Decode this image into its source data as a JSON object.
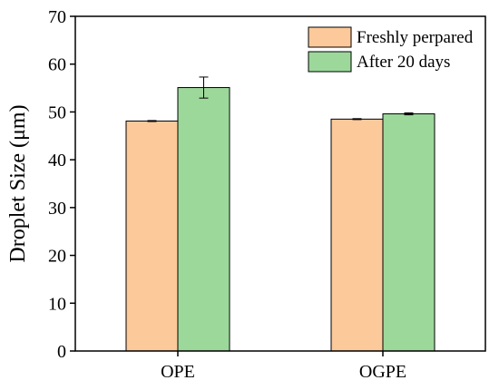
{
  "chart_data": {
    "type": "bar",
    "title": "",
    "xlabel": "",
    "ylabel": "Droplet Size (μm)",
    "categories": [
      "OPE",
      "OGPE"
    ],
    "ylim": [
      0,
      70
    ],
    "yticks": [
      0,
      10,
      20,
      30,
      40,
      50,
      60,
      70
    ],
    "grid": false,
    "legend_position": "top-right",
    "series": [
      {
        "name": "Freshly perpared",
        "color": "#fbc99a",
        "values": [
          48.1,
          48.5
        ],
        "errors": [
          0.1,
          0.1
        ]
      },
      {
        "name": "After 20 days",
        "color": "#9dd89b",
        "values": [
          55.1,
          49.6
        ],
        "errors": [
          2.2,
          0.2
        ]
      }
    ]
  }
}
